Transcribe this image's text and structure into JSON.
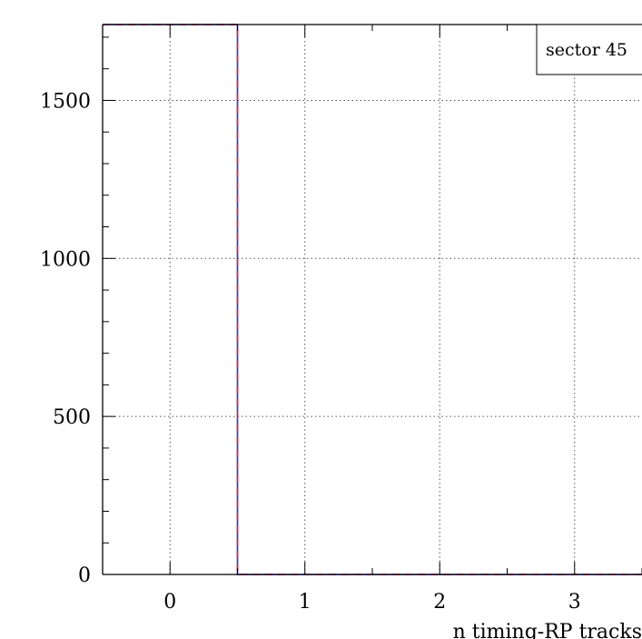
{
  "chart_data": {
    "type": "line",
    "title": "",
    "xlabel": "n timing-RP tracks",
    "ylabel": "",
    "xlim": [
      -0.5,
      3.5
    ],
    "ylim": [
      0,
      1740
    ],
    "grid": true,
    "x_ticks": [
      0,
      1,
      2,
      3
    ],
    "x_tick_labels": [
      "0",
      "1",
      "2",
      "3"
    ],
    "y_ticks": [
      0,
      500,
      1000,
      1500
    ],
    "y_tick_labels": [
      "0",
      "500",
      "1000",
      "1500"
    ],
    "legend": {
      "placement": "top-right",
      "text": "sector 45"
    },
    "series": [
      {
        "color": "#2a2fd6",
        "style": "solid",
        "x": [
          -0.5,
          0.5,
          0.5,
          3.5
        ],
        "y": [
          1740,
          1740,
          0,
          0
        ]
      },
      {
        "color": "#e0242b",
        "style": "dashed",
        "x": [
          -0.5,
          0.5,
          0.5,
          3.5
        ],
        "y": [
          1740,
          1740,
          0,
          0
        ]
      }
    ]
  }
}
